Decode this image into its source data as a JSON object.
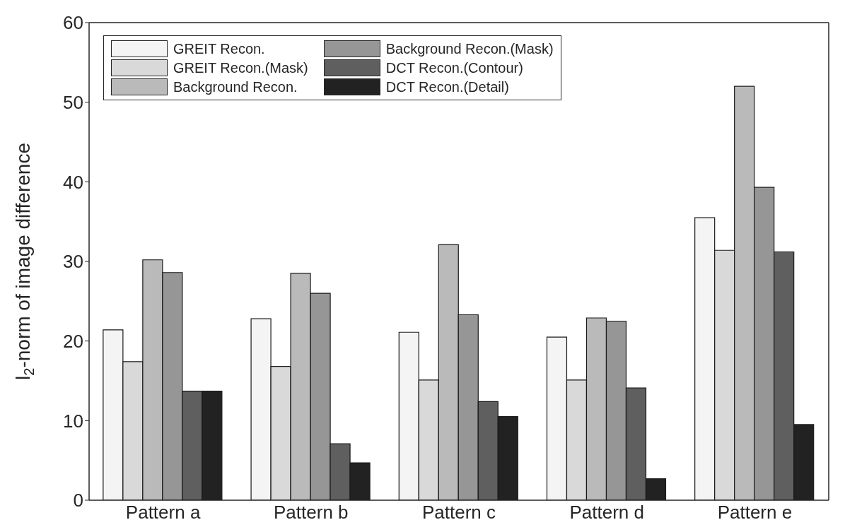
{
  "chart_data": {
    "type": "bar",
    "ylabel": "l$_{2}$-norm of image difference",
    "categories": [
      "Pattern a",
      "Pattern b",
      "Pattern c",
      "Pattern d",
      "Pattern e"
    ],
    "series": [
      {
        "name": "GREIT Recon.",
        "color": "#f4f4f4",
        "values": [
          21.4,
          22.8,
          21.1,
          20.5,
          35.5
        ]
      },
      {
        "name": "GREIT Recon.(Mask)",
        "color": "#d9d9d9",
        "values": [
          17.4,
          16.8,
          15.1,
          15.1,
          31.4
        ]
      },
      {
        "name": "Background Recon.",
        "color": "#bababa",
        "values": [
          30.2,
          28.5,
          32.1,
          22.9,
          52.0
        ]
      },
      {
        "name": "Background Recon.(Mask)",
        "color": "#969696",
        "values": [
          28.6,
          26.0,
          23.3,
          22.5,
          39.3
        ]
      },
      {
        "name": "DCT Recon.(Contour)",
        "color": "#5f5f5f",
        "values": [
          13.7,
          7.1,
          12.4,
          14.1,
          31.2
        ]
      },
      {
        "name": "DCT Recon.(Detail)",
        "color": "#222222",
        "values": [
          13.7,
          4.7,
          10.5,
          2.7,
          9.5
        ]
      }
    ],
    "ylim": [
      0,
      60
    ],
    "yticks": [
      0,
      10,
      20,
      30,
      40,
      50,
      60
    ],
    "legend": "top left"
  }
}
